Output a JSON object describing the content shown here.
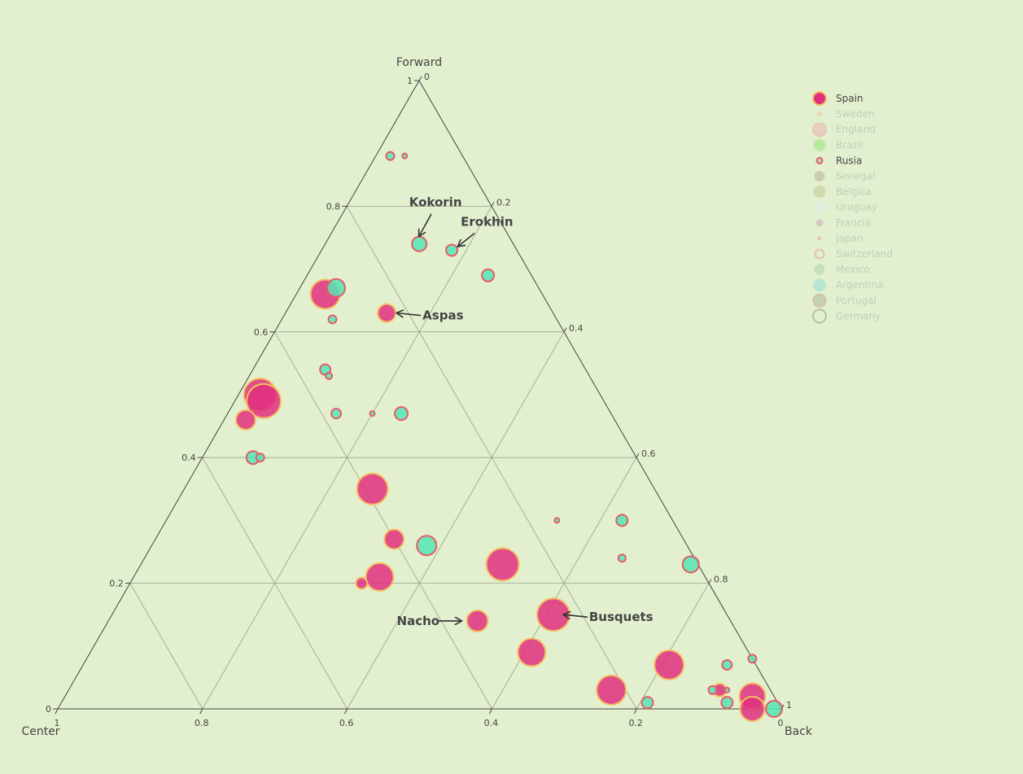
{
  "chart_data": {
    "type": "scatter",
    "subtype": "ternary",
    "axes": {
      "a": {
        "title": "Forward",
        "ticks": [
          "0",
          "0.2",
          "0.4",
          "0.6",
          "0.8",
          "1"
        ]
      },
      "b": {
        "title": "Center",
        "ticks": [
          "0",
          "0.2",
          "0.4",
          "0.6",
          "0.8",
          "1"
        ]
      },
      "c": {
        "title": "Back",
        "ticks": [
          "0",
          "0.2",
          "0.4",
          "0.6",
          "0.8",
          "1"
        ]
      }
    },
    "grid": true,
    "legend": {
      "placement": "top-right",
      "active_color": "#444444",
      "inactive_color": "#a8a8a8"
    },
    "series": [
      {
        "name": "Spain",
        "visible": true,
        "fill": "#e0307f",
        "stroke": "#f5c060",
        "points": [
          {
            "a": 0.66,
            "b": 0.3,
            "s": 36
          },
          {
            "a": 0.63,
            "b": 0.23,
            "s": 22
          },
          {
            "a": 0.5,
            "b": 0.47,
            "s": 40
          },
          {
            "a": 0.49,
            "b": 0.47,
            "s": 42
          },
          {
            "a": 0.46,
            "b": 0.51,
            "s": 24
          },
          {
            "a": 0.35,
            "b": 0.39,
            "s": 38
          },
          {
            "a": 0.27,
            "b": 0.4,
            "s": 24
          },
          {
            "a": 0.21,
            "b": 0.45,
            "s": 34
          },
          {
            "a": 0.2,
            "b": 0.48,
            "s": 14
          },
          {
            "a": 0.23,
            "b": 0.27,
            "s": 40
          },
          {
            "a": 0.15,
            "b": 0.24,
            "s": 40
          },
          {
            "a": 0.14,
            "b": 0.35,
            "s": 26
          },
          {
            "a": 0.09,
            "b": 0.3,
            "s": 34
          },
          {
            "a": 0.03,
            "b": 0.22,
            "s": 36
          },
          {
            "a": 0.07,
            "b": 0.12,
            "s": 36
          },
          {
            "a": 0.03,
            "b": 0.07,
            "s": 16
          },
          {
            "a": 0.02,
            "b": 0.03,
            "s": 32
          },
          {
            "a": 0.0,
            "b": 0.04,
            "s": 30
          }
        ]
      },
      {
        "name": "Sweden",
        "visible": false
      },
      {
        "name": "England",
        "visible": false
      },
      {
        "name": "Brazil",
        "visible": false
      },
      {
        "name": "Rusia",
        "visible": true,
        "fill": "#55e5b5",
        "stroke": "#e65a66",
        "points": [
          {
            "a": 0.88,
            "b": 0.1,
            "s": 10
          },
          {
            "a": 0.88,
            "b": 0.08,
            "s": 6
          },
          {
            "a": 0.74,
            "b": 0.13,
            "s": 18
          },
          {
            "a": 0.73,
            "b": 0.09,
            "s": 14
          },
          {
            "a": 0.67,
            "b": 0.28,
            "s": 22
          },
          {
            "a": 0.69,
            "b": 0.06,
            "s": 15
          },
          {
            "a": 0.62,
            "b": 0.31,
            "s": 10
          },
          {
            "a": 0.54,
            "b": 0.36,
            "s": 13
          },
          {
            "a": 0.53,
            "b": 0.36,
            "s": 8
          },
          {
            "a": 0.47,
            "b": 0.38,
            "s": 12
          },
          {
            "a": 0.47,
            "b": 0.33,
            "s": 6
          },
          {
            "a": 0.47,
            "b": 0.29,
            "s": 16
          },
          {
            "a": 0.4,
            "b": 0.53,
            "s": 16
          },
          {
            "a": 0.4,
            "b": 0.52,
            "s": 10
          },
          {
            "a": 0.3,
            "b": 0.16,
            "s": 6
          },
          {
            "a": 0.3,
            "b": 0.07,
            "s": 14
          },
          {
            "a": 0.24,
            "b": 0.1,
            "s": 9
          },
          {
            "a": 0.23,
            "b": 0.01,
            "s": 20
          },
          {
            "a": 0.26,
            "b": 0.36,
            "s": 24
          },
          {
            "a": 0.08,
            "b": 0.0,
            "s": 10
          },
          {
            "a": 0.07,
            "b": 0.04,
            "s": 12
          },
          {
            "a": 0.03,
            "b": 0.08,
            "s": 10
          },
          {
            "a": 0.01,
            "b": 0.18,
            "s": 14
          },
          {
            "a": 0.01,
            "b": 0.07,
            "s": 14
          },
          {
            "a": 0.0,
            "b": 0.01,
            "s": 20
          },
          {
            "a": 0.03,
            "b": 0.06,
            "s": 6
          }
        ]
      },
      {
        "name": "Senegal",
        "visible": false
      },
      {
        "name": "Bélgica",
        "visible": false
      },
      {
        "name": "Uruguay",
        "visible": false
      },
      {
        "name": "Francia",
        "visible": false
      },
      {
        "name": "Japan",
        "visible": false
      },
      {
        "name": "Switzerland",
        "visible": false
      },
      {
        "name": "Mexico",
        "visible": false
      },
      {
        "name": "Argentina",
        "visible": false
      },
      {
        "name": "Portugal",
        "visible": false
      },
      {
        "name": "Germany",
        "visible": false
      }
    ],
    "legend_markers": [
      {
        "name": "Spain",
        "fill": "#e0307f",
        "stroke": "#f5c060",
        "size": 16
      },
      {
        "name": "Sweden",
        "fill": "#f0c090",
        "stroke": "#f0c090",
        "size": 4
      },
      {
        "name": "England",
        "fill": "#ecb0b0",
        "stroke": "#e8a0a0",
        "size": 16
      },
      {
        "name": "Brazil",
        "fill": "#8ce56a",
        "stroke": "#bfe8a8",
        "size": 15
      },
      {
        "name": "Rusia",
        "fill": "#a8e0b8",
        "stroke": "#e65a66",
        "size": 7
      },
      {
        "name": "Senegal",
        "fill": "#b0b080",
        "stroke": "#c0a8a0",
        "size": 11
      },
      {
        "name": "Bélgica",
        "fill": "#c0c890",
        "stroke": "#c8c088",
        "size": 13
      },
      {
        "name": "Uruguay",
        "fill": "#d8ece8",
        "stroke": "#d8ece8",
        "size": 14
      },
      {
        "name": "Francia",
        "fill": "#c8a8b8",
        "stroke": "#c8a8b8",
        "size": 7
      },
      {
        "name": "Japan",
        "fill": "#e0a0a8",
        "stroke": "#e0a0a8",
        "size": 3
      },
      {
        "name": "Switzerland",
        "fill": "none",
        "stroke": "#e89080",
        "size": 11
      },
      {
        "name": "Mexico",
        "fill": "#a8d8a0",
        "stroke": "#b8c8a8",
        "size": 11
      },
      {
        "name": "Argentina",
        "fill": "#8ee0d0",
        "stroke": "#8ee0d0",
        "size": 14
      },
      {
        "name": "Portugal",
        "fill": "#a8b890",
        "stroke": "#c89090",
        "size": 15
      },
      {
        "name": "Germany",
        "fill": "none",
        "stroke": "#8a8a8a",
        "size": 16
      }
    ],
    "annotations": [
      {
        "text": "Kokorin",
        "a": 0.74,
        "b": 0.13,
        "dir": "above"
      },
      {
        "text": "Erokhin",
        "a": 0.73,
        "b": 0.09,
        "dir": "above-right"
      },
      {
        "text": "Aspas",
        "a": 0.63,
        "b": 0.23,
        "dir": "right"
      },
      {
        "text": "Nacho",
        "a": 0.14,
        "b": 0.35,
        "dir": "left"
      },
      {
        "text": "Busquets",
        "a": 0.15,
        "b": 0.24,
        "dir": "right"
      }
    ]
  }
}
